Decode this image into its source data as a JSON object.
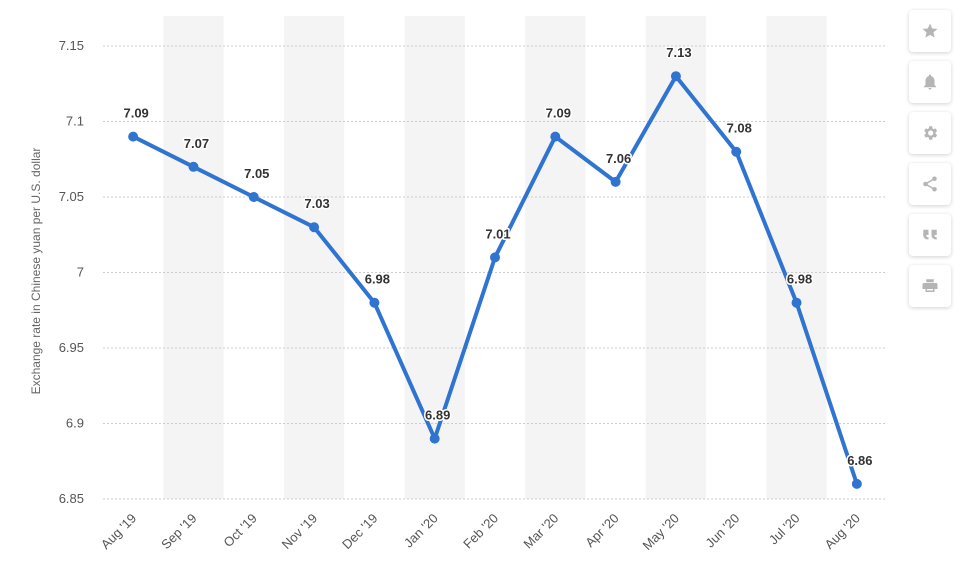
{
  "chart_data": {
    "type": "line",
    "categories": [
      "Aug '19",
      "Sep '19",
      "Oct '19",
      "Nov '19",
      "Dec '19",
      "Jan '20",
      "Feb '20",
      "Mar '20",
      "Apr '20",
      "May '20",
      "Jun '20",
      "Jul '20",
      "Aug '20"
    ],
    "values": [
      7.09,
      7.07,
      7.05,
      7.03,
      6.98,
      6.89,
      7.01,
      7.09,
      7.06,
      7.13,
      7.08,
      6.98,
      6.86
    ],
    "data_labels": [
      "7.09",
      "7.07",
      "7.05",
      "7.03",
      "6.98",
      "6.89",
      "7.01",
      "7.09",
      "7.06",
      "7.13",
      "7.08",
      "6.98",
      "6.86"
    ],
    "title": "",
    "xlabel": "",
    "ylabel": "Exchange rate in Chinese yuan per U.S. dollar",
    "ylim": [
      6.85,
      7.15
    ],
    "yticks": [
      6.85,
      6.9,
      6.95,
      7,
      7.05,
      7.1,
      7.15
    ],
    "ytick_labels": [
      "6.85",
      "6.9",
      "6.95",
      "7",
      "7.05",
      "7.1",
      "7.15"
    ],
    "grid": true,
    "legend": "none",
    "colors": {
      "line": "#2f74d0",
      "band": "#f4f4f4",
      "grid": "#cccccc"
    }
  },
  "toolbar": {
    "buttons": [
      {
        "name": "favorite-button",
        "icon": "star-icon"
      },
      {
        "name": "notification-button",
        "icon": "bell-icon"
      },
      {
        "name": "settings-button",
        "icon": "gear-icon"
      },
      {
        "name": "share-button",
        "icon": "share-icon"
      },
      {
        "name": "cite-button",
        "icon": "quote-icon"
      },
      {
        "name": "print-button",
        "icon": "print-icon"
      }
    ],
    "icon_color": "#b5b5b5"
  }
}
